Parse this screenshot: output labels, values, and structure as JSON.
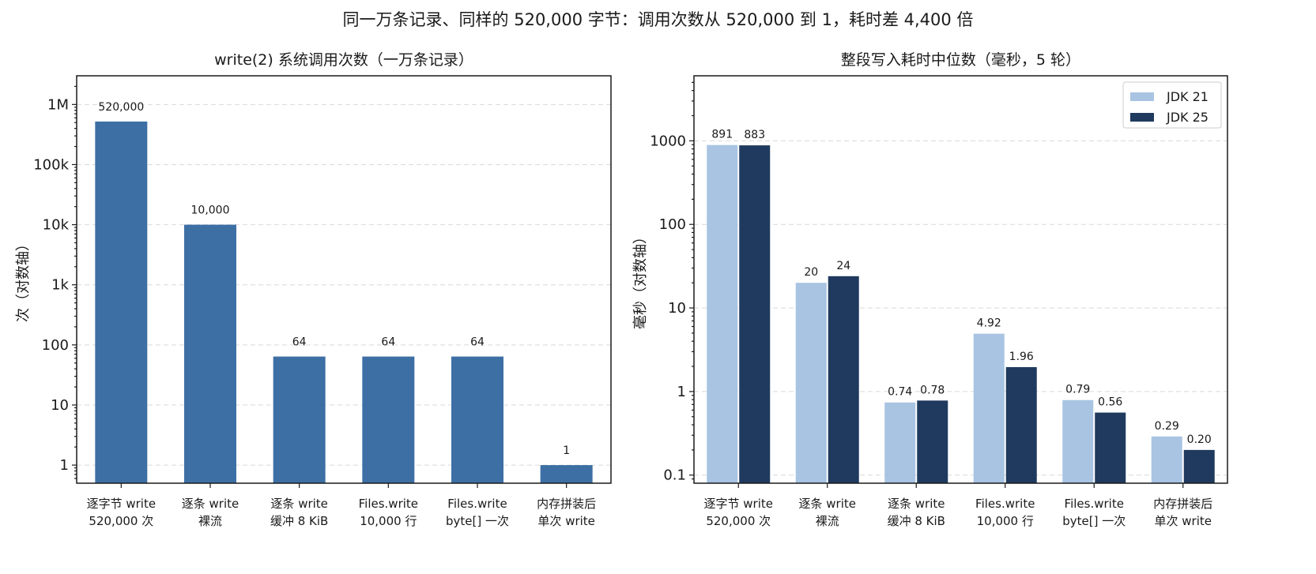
{
  "suptitle": "同一万条记录、同样的 520,000 字节：调用次数从 520,000 到 1，耗时差 4,400 倍",
  "colors": {
    "single": "#3d6fa5",
    "jdk21": "#a8c4e2",
    "jdk25": "#1f3a5e"
  },
  "chart_data": [
    {
      "type": "bar",
      "title": "write(2) 系统调用次数（一万条记录）",
      "ylabel": "次（对数轴）",
      "yscale": "log",
      "ylim": [
        0.5,
        3000000
      ],
      "yticks": [
        1,
        10,
        100,
        1000,
        10000,
        100000,
        1000000
      ],
      "ytick_labels": [
        "1",
        "10",
        "100",
        "1k",
        "10k",
        "100k",
        "1M"
      ],
      "grid": true,
      "categories": [
        [
          "逐字节 write",
          "520,000 次"
        ],
        [
          "逐条 write",
          "裸流"
        ],
        [
          "逐条 write",
          "缓冲 8 KiB"
        ],
        [
          "Files.write",
          "10,000 行"
        ],
        [
          "Files.write",
          "byte[] 一次"
        ],
        [
          "内存拼装后",
          "单次 write"
        ]
      ],
      "values": [
        520000,
        10000,
        64,
        64,
        64,
        1
      ],
      "value_labels": [
        "520,000",
        "10,000",
        "64",
        "64",
        "64",
        "1"
      ]
    },
    {
      "type": "bar",
      "title": "整段写入耗时中位数（毫秒，5 轮）",
      "ylabel": "毫秒（对数轴）",
      "yscale": "log",
      "ylim": [
        0.08,
        6000
      ],
      "yticks": [
        0.1,
        1,
        10,
        100,
        1000
      ],
      "ytick_labels": [
        "0.1",
        "1",
        "10",
        "100",
        "1000"
      ],
      "grid": true,
      "legend_position": "top-right",
      "categories": [
        [
          "逐字节 write",
          "520,000 次"
        ],
        [
          "逐条 write",
          "裸流"
        ],
        [
          "逐条 write",
          "缓冲 8 KiB"
        ],
        [
          "Files.write",
          "10,000 行"
        ],
        [
          "Files.write",
          "byte[] 一次"
        ],
        [
          "内存拼装后",
          "单次 write"
        ]
      ],
      "series": [
        {
          "name": "JDK 21",
          "values": [
            891,
            20,
            0.74,
            4.92,
            0.79,
            0.29
          ],
          "value_labels": [
            "891",
            "20",
            "0.74",
            "4.92",
            "0.79",
            "0.29"
          ]
        },
        {
          "name": "JDK 25",
          "values": [
            883,
            24,
            0.78,
            1.96,
            0.56,
            0.2
          ],
          "value_labels": [
            "883",
            "24",
            "0.78",
            "1.96",
            "0.56",
            "0.20"
          ]
        }
      ]
    }
  ]
}
